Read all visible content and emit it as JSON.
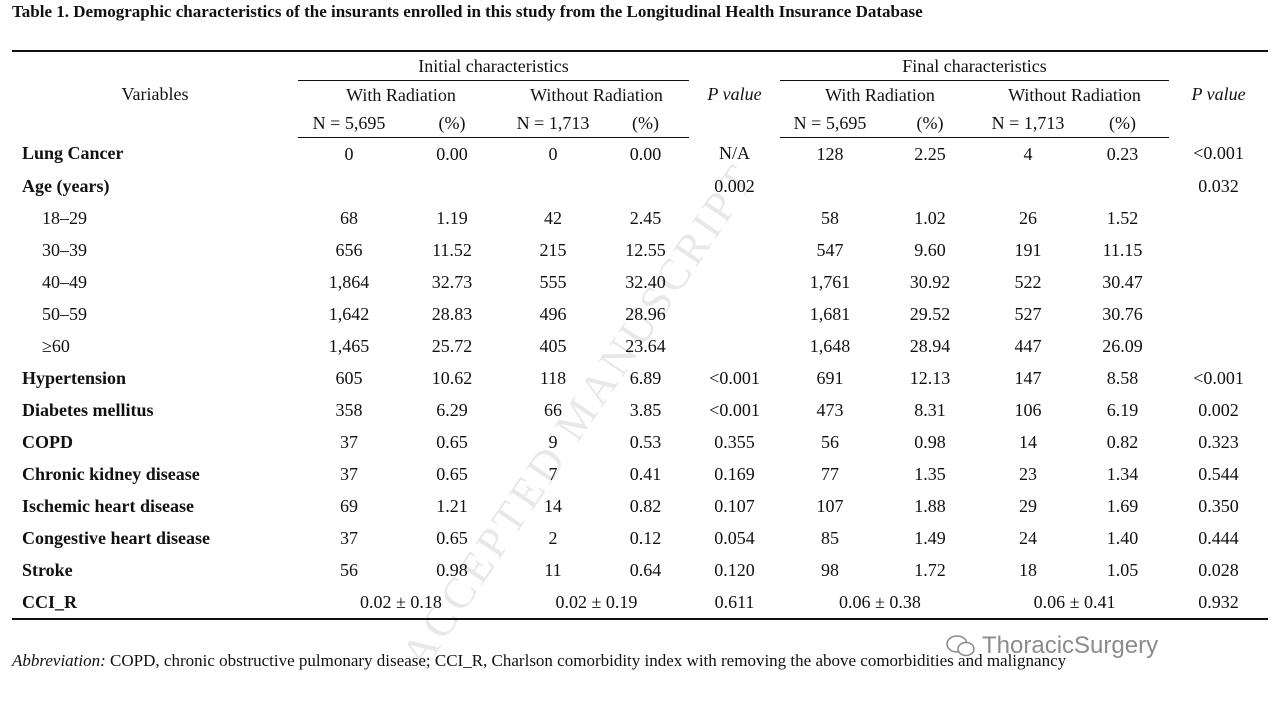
{
  "title": "Table 1. Demographic characteristics of the insurants enrolled in this study from the Longitudinal Health Insurance Database",
  "header": {
    "variables": "Variables",
    "groups": [
      "Initial characteristics",
      "Final characteristics"
    ],
    "p_value": [
      "P value",
      "P value"
    ],
    "subgroups": [
      "With Radiation",
      "Without Radiation",
      "With Radiation",
      "Without Radiation"
    ],
    "counts": [
      {
        "n": "N = 5,695",
        "pct": "(%)"
      },
      {
        "n": "N = 1,713",
        "pct": "(%)"
      },
      {
        "n": "N = 5,695",
        "pct": "(%)"
      },
      {
        "n": "N = 1,713",
        "pct": "(%)"
      }
    ]
  },
  "table": {
    "rows": [
      {
        "label": "Lung Cancer",
        "bold": true,
        "cells": [
          "0",
          "0.00",
          "0",
          "0.00",
          "N/A",
          "128",
          "2.25",
          "4",
          "0.23",
          "<0.001"
        ]
      },
      {
        "label": "Age (years)",
        "bold": true,
        "cells": [
          null,
          null,
          null,
          null,
          "0.002",
          null,
          null,
          null,
          null,
          "0.032"
        ]
      },
      {
        "label": "18–29",
        "indent": true,
        "cells": [
          "68",
          "1.19",
          "42",
          "2.45",
          null,
          "58",
          "1.02",
          "26",
          "1.52",
          null
        ]
      },
      {
        "label": "30–39",
        "indent": true,
        "cells": [
          "656",
          "11.52",
          "215",
          "12.55",
          null,
          "547",
          "9.60",
          "191",
          "11.15",
          null
        ]
      },
      {
        "label": "40–49",
        "indent": true,
        "cells": [
          "1,864",
          "32.73",
          "555",
          "32.40",
          null,
          "1,761",
          "30.92",
          "522",
          "30.47",
          null
        ]
      },
      {
        "label": "50–59",
        "indent": true,
        "cells": [
          "1,642",
          "28.83",
          "496",
          "28.96",
          null,
          "1,681",
          "29.52",
          "527",
          "30.76",
          null
        ]
      },
      {
        "label": "≥60",
        "indent": true,
        "cells": [
          "1,465",
          "25.72",
          "405",
          "23.64",
          null,
          "1,648",
          "28.94",
          "447",
          "26.09",
          null
        ]
      },
      {
        "label": "Hypertension",
        "bold": true,
        "cells": [
          "605",
          "10.62",
          "118",
          "6.89",
          "<0.001",
          "691",
          "12.13",
          "147",
          "8.58",
          "<0.001"
        ]
      },
      {
        "label": "Diabetes mellitus",
        "bold": true,
        "cells": [
          "358",
          "6.29",
          "66",
          "3.85",
          "<0.001",
          "473",
          "8.31",
          "106",
          "6.19",
          "0.002"
        ]
      },
      {
        "label": "COPD",
        "bold": true,
        "cells": [
          "37",
          "0.65",
          "9",
          "0.53",
          "0.355",
          "56",
          "0.98",
          "14",
          "0.82",
          "0.323"
        ]
      },
      {
        "label": "Chronic kidney disease",
        "bold": true,
        "cells": [
          "37",
          "0.65",
          "7",
          "0.41",
          "0.169",
          "77",
          "1.35",
          "23",
          "1.34",
          "0.544"
        ]
      },
      {
        "label": "Ischemic heart disease",
        "bold": true,
        "cells": [
          "69",
          "1.21",
          "14",
          "0.82",
          "0.107",
          "107",
          "1.88",
          "29",
          "1.69",
          "0.350"
        ]
      },
      {
        "label": "Congestive heart disease",
        "bold": true,
        "cells": [
          "37",
          "0.65",
          "2",
          "0.12",
          "0.054",
          "85",
          "1.49",
          "24",
          "1.40",
          "0.444"
        ]
      },
      {
        "label": "Stroke",
        "bold": true,
        "cells": [
          "56",
          "0.98",
          "11",
          "0.64",
          "0.120",
          "98",
          "1.72",
          "18",
          "1.05",
          "0.028"
        ]
      },
      {
        "label": "CCI_R",
        "bold": true,
        "merged": true,
        "cells": [
          "0.02 ± 0.18",
          "0.02 ± 0.19",
          "0.611",
          "0.06 ± 0.38",
          "0.06 ± 0.41",
          "0.932"
        ]
      }
    ]
  },
  "footnote": {
    "label": "Abbreviation:",
    "text": "COPD, chronic obstructive pulmonary disease; CCI_R, Charlson comorbidity index with removing the above comorbidities and malignancy"
  },
  "watermark": "ACCEPTED MANUSCRIPT",
  "logo": "ThoracicSurgery"
}
